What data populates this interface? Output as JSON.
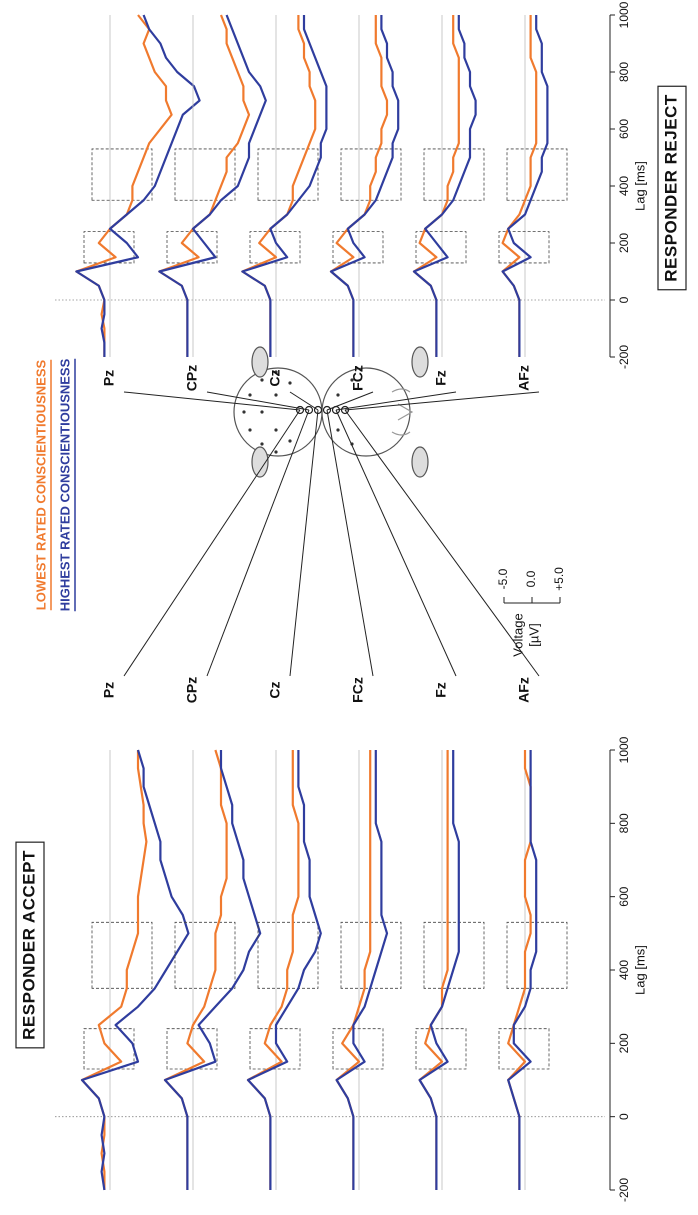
{
  "legend": {
    "series": [
      {
        "name": "LOWEST RATED CONSCIENTIOUSNESS",
        "color": "#f07a2e"
      },
      {
        "name": "HIGHEST RATED CONSCIENTIOUSNESS",
        "color": "#2f3d9e"
      }
    ]
  },
  "voltage_scale": {
    "label_lines": [
      "Voltage",
      "[µV]"
    ],
    "ticks": [
      {
        "value": -5,
        "label": "-5.0"
      },
      {
        "value": 0,
        "label": "0.0"
      },
      {
        "value": 5,
        "label": "+5.0"
      }
    ]
  },
  "chart_data": [
    {
      "type": "line",
      "title": "RESPONDER ACCEPT",
      "x_label": "Lag [ms]",
      "x": [
        -200,
        -150,
        -100,
        -50,
        0,
        50,
        100,
        150,
        200,
        250,
        300,
        350,
        400,
        450,
        500,
        550,
        600,
        650,
        700,
        750,
        800,
        850,
        900,
        950,
        1000
      ],
      "xlim": [
        -200,
        1000
      ],
      "xticks": [
        -200,
        0,
        200,
        400,
        600,
        800,
        1000
      ],
      "windows": [
        [
          130,
          240
        ],
        [
          350,
          530
        ]
      ],
      "rows": [
        {
          "name": "Pz",
          "series": [
            {
              "values": [
                -1,
                -1,
                -1.5,
                -1,
                -1,
                -2,
                -5,
                2,
                -1,
                -2,
                2,
                3,
                3,
                4,
                5,
                5,
                5,
                5.5,
                6,
                6.5,
                6,
                6,
                5.5,
                5,
                5
              ]
            },
            {
              "values": [
                -1,
                -1.5,
                -1,
                -1.5,
                -1,
                -2,
                -5,
                5,
                4,
                1,
                5,
                8,
                10,
                12,
                14,
                13,
                11,
                10,
                9,
                9,
                8,
                7,
                6,
                6,
                5
              ]
            }
          ]
        },
        {
          "name": "CPz",
          "series": [
            {
              "values": [
                -1,
                -1,
                -1,
                -1,
                -1,
                -2,
                -5,
                2,
                -1,
                0,
                2,
                3,
                4,
                4,
                4,
                5,
                5,
                6,
                6,
                6,
                6,
                5,
                5,
                5,
                4
              ]
            },
            {
              "values": [
                -1,
                -1,
                -1,
                -1,
                -1,
                -2,
                -5,
                4,
                3,
                1,
                4,
                7,
                9,
                10,
                12,
                11,
                10,
                9,
                9,
                8,
                7,
                7,
                6,
                5,
                5
              ]
            }
          ]
        },
        {
          "name": "Cz",
          "series": [
            {
              "values": [
                -1,
                -1,
                -1,
                -1,
                -1,
                -2,
                -5,
                1,
                -2,
                -1,
                1,
                2,
                2,
                3,
                3,
                3,
                4,
                4,
                4,
                4,
                4,
                3,
                3,
                3,
                3
              ]
            },
            {
              "values": [
                -1,
                -1,
                -1,
                -1,
                -1,
                -2,
                -5,
                2,
                0,
                0,
                2,
                4,
                5,
                7,
                8,
                7,
                6,
                6,
                6,
                5,
                5,
                5,
                4,
                4,
                4
              ]
            }
          ]
        },
        {
          "name": "FCz",
          "series": [
            {
              "values": [
                -1,
                -1,
                -1,
                -1,
                -1,
                -2,
                -4,
                0,
                -3,
                -1,
                0,
                1,
                1,
                2,
                2,
                2,
                2,
                2,
                2,
                2,
                2,
                2,
                2,
                2,
                2
              ]
            },
            {
              "values": [
                -1,
                -1,
                -1,
                -1,
                -1,
                -2,
                -4,
                1,
                -1,
                -1,
                1,
                2,
                3,
                4,
                5,
                4,
                4,
                4,
                4,
                4,
                3,
                3,
                3,
                3,
                3
              ]
            }
          ]
        },
        {
          "name": "Fz",
          "series": [
            {
              "values": [
                -1,
                -1,
                -1,
                -1,
                -1,
                -2,
                -4,
                0,
                -3,
                -2,
                0,
                0,
                1,
                1,
                1,
                1,
                1,
                1,
                1,
                1,
                1,
                1,
                1,
                1,
                1
              ]
            },
            {
              "values": [
                -1,
                -1,
                -1,
                -1,
                -1,
                -2,
                -4,
                1,
                -1,
                -2,
                0,
                1,
                2,
                3,
                3,
                3,
                3,
                3,
                3,
                3,
                2,
                2,
                2,
                2,
                2
              ]
            }
          ]
        },
        {
          "name": "AFz",
          "series": [
            {
              "values": [
                -1,
                -1,
                -1,
                -1,
                -1,
                -2,
                -3,
                0,
                -3,
                -2,
                -1,
                0,
                0,
                0,
                1,
                1,
                0,
                0,
                0,
                1,
                1,
                1,
                1,
                0,
                0
              ]
            },
            {
              "values": [
                -1,
                -1,
                -1,
                -1,
                -1,
                -2,
                -3,
                1,
                -2,
                -2,
                0,
                1,
                1,
                2,
                2,
                2,
                2,
                2,
                2,
                1,
                1,
                1,
                1,
                1,
                1
              ]
            }
          ]
        }
      ]
    },
    {
      "type": "line",
      "title": "RESPONDER REJECT",
      "x_label": "Lag [ms]",
      "x": [
        -200,
        -150,
        -100,
        -50,
        0,
        50,
        100,
        150,
        200,
        250,
        300,
        350,
        400,
        450,
        500,
        550,
        600,
        650,
        700,
        750,
        800,
        850,
        900,
        950,
        1000
      ],
      "xlim": [
        -200,
        1000
      ],
      "xticks": [
        -200,
        0,
        200,
        400,
        600,
        800,
        1000
      ],
      "windows": [
        [
          130,
          240
        ],
        [
          350,
          530
        ]
      ],
      "rows": [
        {
          "name": "Pz",
          "series": [
            {
              "values": [
                -1,
                -1,
                -1,
                -1.5,
                -1,
                -2,
                -6,
                1,
                -2,
                0,
                3,
                4,
                4,
                5,
                6,
                7,
                9,
                11,
                10,
                10,
                8,
                7,
                6,
                7,
                5
              ]
            },
            {
              "values": [
                -1,
                -1,
                -1.5,
                -1,
                -1,
                -2,
                -6,
                5,
                3,
                0,
                3,
                6,
                8,
                9,
                10,
                11,
                12,
                13,
                16,
                15,
                12,
                10,
                9,
                7,
                6
              ]
            }
          ]
        },
        {
          "name": "CPz",
          "series": [
            {
              "values": [
                -1,
                -1,
                -1,
                -1,
                -1,
                -2,
                -6,
                1,
                -2,
                0,
                3,
                4,
                5,
                6,
                6,
                8,
                9,
                10,
                9,
                9,
                8,
                7,
                6,
                6,
                5
              ]
            },
            {
              "values": [
                -1,
                -1,
                -1,
                -1,
                -1,
                -2,
                -6,
                4,
                2,
                0,
                3,
                5,
                8,
                9,
                10,
                10,
                11,
                12,
                13,
                12,
                10,
                9,
                8,
                7,
                6
              ]
            }
          ]
        },
        {
          "name": "Cz",
          "series": [
            {
              "values": [
                -1,
                -1,
                -1,
                -1,
                -1,
                -2,
                -6,
                0,
                -3,
                -1,
                2,
                3,
                3,
                4,
                5,
                6,
                7,
                7,
                7,
                6,
                6,
                5,
                5,
                4,
                4
              ]
            },
            {
              "values": [
                -1,
                -1,
                -1,
                -1,
                -1,
                -2,
                -6,
                2,
                0,
                -1,
                2,
                4,
                6,
                7,
                8,
                8,
                9,
                9,
                9,
                9,
                8,
                7,
                6,
                5,
                5
              ]
            }
          ]
        },
        {
          "name": "FCz",
          "series": [
            {
              "values": [
                -1,
                -1,
                -1,
                -1,
                -1,
                -2,
                -5,
                -1,
                -4,
                -2,
                1,
                2,
                2,
                3,
                3,
                4,
                4,
                5,
                5,
                4,
                4,
                4,
                3,
                3,
                3
              ]
            },
            {
              "values": [
                -1,
                -1,
                -1,
                -1,
                -1,
                -2,
                -5,
                1,
                -1,
                -2,
                1,
                3,
                4,
                5,
                6,
                6,
                7,
                7,
                7,
                6,
                6,
                5,
                5,
                4,
                4
              ]
            }
          ]
        },
        {
          "name": "Fz",
          "series": [
            {
              "values": [
                -1,
                -1,
                -1,
                -1,
                -1,
                -2,
                -5,
                -1,
                -4,
                -3,
                0,
                1,
                1,
                2,
                2,
                3,
                3,
                3,
                3,
                3,
                3,
                3,
                2,
                2,
                2
              ]
            },
            {
              "values": [
                -1,
                -1,
                -1,
                -1,
                -1,
                -2,
                -5,
                1,
                -1,
                -3,
                0,
                2,
                3,
                4,
                5,
                5,
                5,
                6,
                6,
                5,
                5,
                4,
                4,
                3,
                3
              ]
            }
          ]
        },
        {
          "name": "AFz",
          "series": [
            {
              "values": [
                -1,
                -1,
                -1,
                -1,
                -1,
                -2,
                -4,
                -1,
                -4,
                -3,
                -1,
                0,
                1,
                1,
                1,
                2,
                2,
                2,
                2,
                2,
                2,
                1,
                1,
                1,
                1
              ]
            },
            {
              "values": [
                -1,
                -1,
                -1,
                -1,
                -1,
                -2,
                -4,
                1,
                -2,
                -3,
                0,
                1,
                2,
                3,
                3,
                4,
                4,
                4,
                4,
                4,
                3,
                3,
                3,
                2,
                2
              ]
            }
          ]
        }
      ]
    }
  ]
}
